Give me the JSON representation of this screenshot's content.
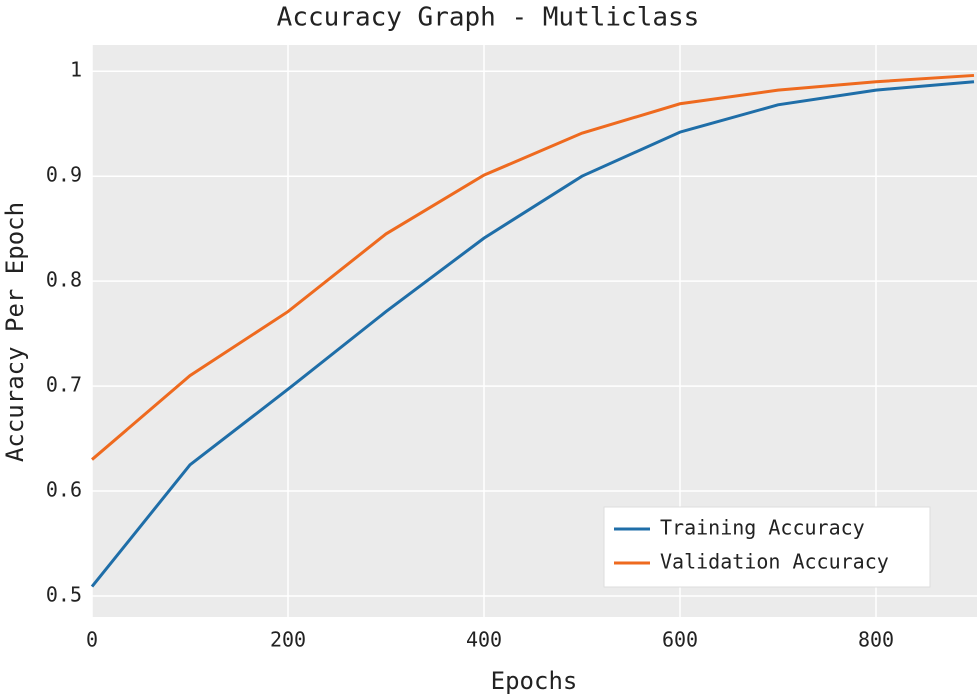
{
  "chart_data": {
    "type": "line",
    "title": "Accuracy Graph - Mutliclass",
    "x_label": "Epochs",
    "y_label": "Accuracy Per Epoch",
    "x": [
      0,
      100,
      200,
      300,
      400,
      500,
      600,
      700,
      800,
      900
    ],
    "series": [
      {
        "name": "Training Accuracy",
        "color": "#1f6ea8",
        "values": [
          0.509,
          0.625,
          0.697,
          0.771,
          0.841,
          0.9,
          0.942,
          0.968,
          0.982,
          0.99
        ]
      },
      {
        "name": "Validation Accuracy",
        "color": "#ee6a1f",
        "values": [
          0.63,
          0.71,
          0.771,
          0.845,
          0.901,
          0.941,
          0.969,
          0.982,
          0.99,
          0.996
        ]
      }
    ],
    "xlim": [
      0,
      900
    ],
    "ylim": [
      0.48,
      1.025
    ],
    "xticks": [
      0,
      200,
      400,
      600,
      800
    ],
    "yticks": [
      0.5,
      0.6,
      0.7,
      0.8,
      0.9,
      1
    ],
    "grid": true,
    "legend": "lower right"
  }
}
